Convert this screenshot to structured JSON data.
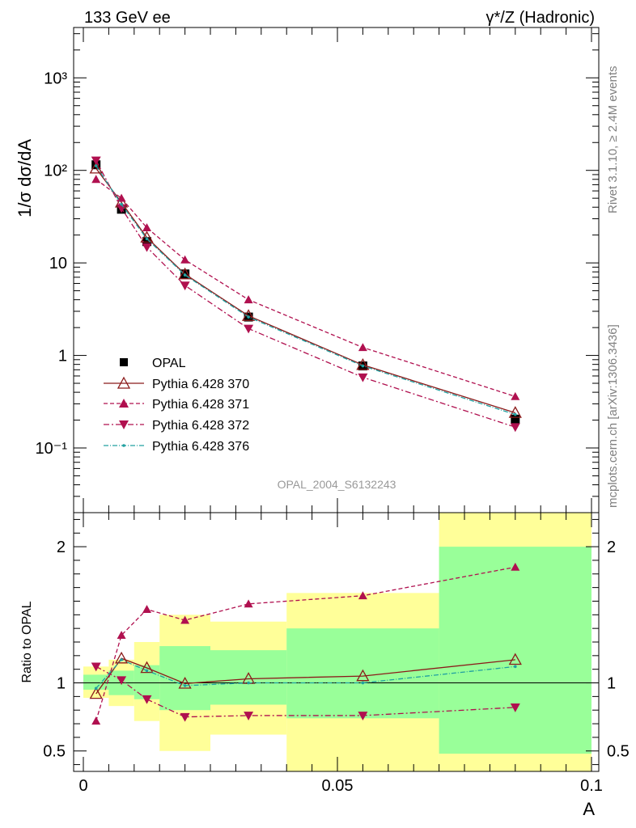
{
  "header": {
    "left": "133 GeV ee",
    "right": "γ*/Z (Hadronic)"
  },
  "side": {
    "rivet": "Rivet 3.1.10, ≥ 2.4M events",
    "mcplots": "mcplots.cern.ch [arXiv:1306.3436]"
  },
  "watermark": "OPAL_2004_S6132243",
  "legend": {
    "items": [
      "OPAL",
      "Pythia 6.428 370",
      "Pythia 6.428 371",
      "Pythia 6.428 372",
      "Pythia 6.428 376"
    ]
  },
  "colors": {
    "data": "#000000",
    "p370": "#8b1a1a",
    "p371": "#b0104f",
    "p372": "#b0104f",
    "p376": "#20a0a0",
    "band_inner": "#99ff99",
    "band_outer": "#ffff99"
  },
  "chart_data": [
    {
      "type": "line",
      "title": "",
      "ylabel": "1/σ dσ/dA",
      "xlabel": "",
      "yscale": "log",
      "ylim": [
        0.02,
        3500
      ],
      "xlim": [
        0,
        0.1
      ],
      "yticks": [
        "10⁻¹",
        "1",
        "10",
        "10²",
        "10³"
      ],
      "ytick_values": [
        0.1,
        1,
        10,
        100,
        1000
      ],
      "x": [
        0.0025,
        0.0075,
        0.0125,
        0.02,
        0.0325,
        0.055,
        0.085
      ],
      "series": [
        {
          "name": "OPAL",
          "values": [
            115,
            38,
            17,
            7.6,
            2.6,
            0.77,
            0.205
          ]
        },
        {
          "name": "Pythia 6.428 370",
          "values": [
            105,
            45,
            18.8,
            7.55,
            2.68,
            0.79,
            0.24
          ]
        },
        {
          "name": "Pythia 6.428 371",
          "values": [
            80,
            50,
            24,
            10.8,
            4.0,
            1.22,
            0.36
          ]
        },
        {
          "name": "Pythia 6.428 372",
          "values": [
            128,
            39,
            14.8,
            5.7,
            1.95,
            0.58,
            0.168
          ]
        },
        {
          "name": "Pythia 6.428 376",
          "values": [
            112,
            43,
            18.2,
            7.4,
            2.6,
            0.77,
            0.23
          ]
        }
      ]
    },
    {
      "type": "line",
      "title": "",
      "ylabel": "Ratio to OPAL",
      "xlabel": "A",
      "ylim": [
        0.35,
        2.25
      ],
      "xlim": [
        0,
        0.1
      ],
      "yticks": [
        "0.5",
        "1",
        "2"
      ],
      "ytick_values": [
        0.5,
        1,
        2
      ],
      "xticks": [
        "0",
        "0.05",
        "0.1"
      ],
      "xtick_values": [
        0,
        0.05,
        0.1
      ],
      "x": [
        0.0025,
        0.0075,
        0.0125,
        0.02,
        0.0325,
        0.055,
        0.085
      ],
      "bin_edges": [
        0,
        0.005,
        0.01,
        0.015,
        0.025,
        0.04,
        0.07,
        0.1
      ],
      "band_inner": [
        [
          0.95,
          1.06
        ],
        [
          0.91,
          1.09
        ],
        [
          0.88,
          1.13
        ],
        [
          0.8,
          1.27
        ],
        [
          0.84,
          1.24
        ],
        [
          0.74,
          1.4
        ],
        [
          0.48,
          2.0
        ]
      ],
      "band_outer": [
        [
          0.89,
          1.12
        ],
        [
          0.83,
          1.17
        ],
        [
          0.72,
          1.3
        ],
        [
          0.5,
          1.5
        ],
        [
          0.62,
          1.45
        ],
        [
          0.35,
          1.66
        ],
        [
          0.35,
          2.25
        ]
      ],
      "series": [
        {
          "name": "Pythia 6.428 370",
          "values": [
            0.92,
            1.18,
            1.11,
            0.995,
            1.03,
            1.05,
            1.17
          ]
        },
        {
          "name": "Pythia 6.428 371",
          "values": [
            0.72,
            1.35,
            1.54,
            1.46,
            1.58,
            1.64,
            1.85
          ]
        },
        {
          "name": "Pythia 6.428 372",
          "values": [
            1.12,
            1.02,
            0.88,
            0.75,
            0.76,
            0.76,
            0.82
          ]
        },
        {
          "name": "Pythia 6.428 376",
          "values": [
            0.96,
            1.17,
            1.09,
            0.98,
            1.0,
            1.0,
            1.12
          ]
        }
      ]
    }
  ]
}
